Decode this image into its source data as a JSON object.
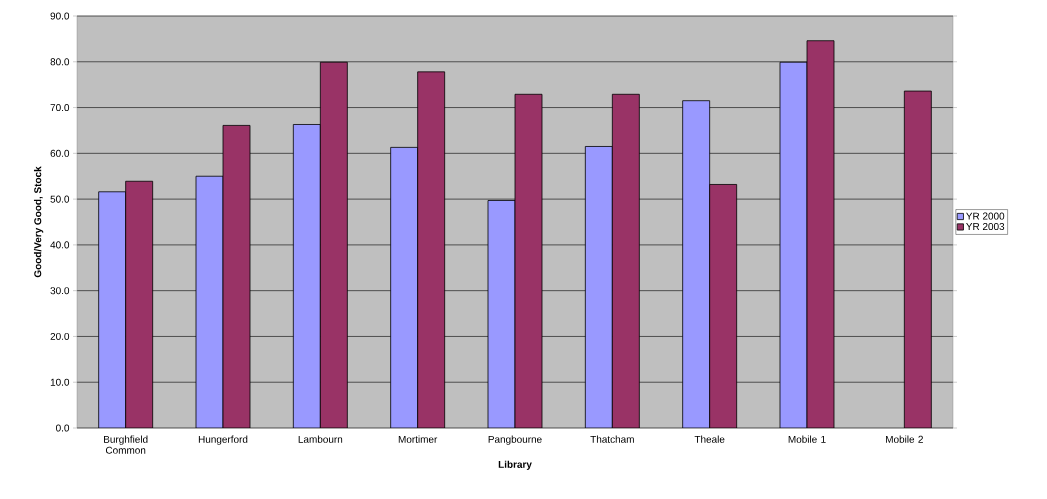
{
  "chart_data": {
    "type": "bar",
    "xlabel": "Library",
    "ylabel": "Good/Very Good, Stock",
    "categories": [
      "Burghfield Common",
      "Hungerford",
      "Lambourn",
      "Mortimer",
      "Pangbourne",
      "Thatcham",
      "Theale",
      "Mobile 1",
      "Mobile 2"
    ],
    "series": [
      {
        "name": "YR 2000",
        "color": "#9999ff",
        "values": [
          51.6,
          55.0,
          66.3,
          61.3,
          49.7,
          61.5,
          71.5,
          79.9,
          null
        ]
      },
      {
        "name": "YR 2003",
        "color": "#993366",
        "values": [
          53.9,
          66.1,
          79.9,
          77.8,
          72.9,
          72.9,
          53.2,
          84.6,
          73.6
        ]
      }
    ],
    "ylim": [
      0,
      90
    ],
    "yticks": [
      {
        "value": 0,
        "label": "0.0"
      },
      {
        "value": 10,
        "label": "10.0"
      },
      {
        "value": 20,
        "label": "20.0"
      },
      {
        "value": 30,
        "label": "30.0"
      },
      {
        "value": 40,
        "label": "40.0"
      },
      {
        "value": 50,
        "label": "50.0"
      },
      {
        "value": 60,
        "label": "60.0"
      },
      {
        "value": 70,
        "label": "70.0"
      },
      {
        "value": 80,
        "label": "80.0"
      },
      {
        "value": 90,
        "label": "90.0"
      }
    ],
    "grid": "y",
    "legend": "right"
  }
}
